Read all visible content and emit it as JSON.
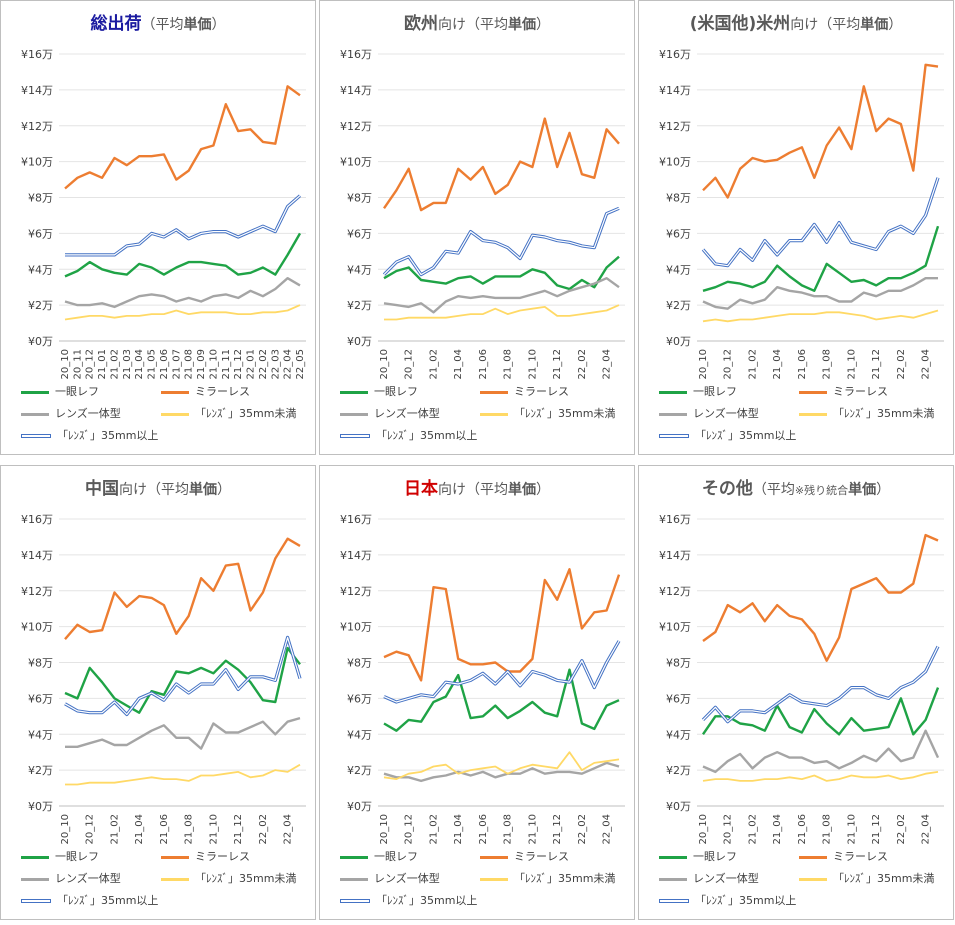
{
  "colors": {
    "slr": "#1fa346",
    "mirrorless": "#ed7d31",
    "fixed": "#a5a5a5",
    "lens_small": "#ffd966",
    "lens_large": "#4472c4",
    "grid": "#e4e4e4"
  },
  "y_ticks": [
    "¥0万",
    "¥2万",
    "¥4万",
    "¥6万",
    "¥8万",
    "¥10万",
    "¥12万",
    "¥14万",
    "¥16万"
  ],
  "legend": [
    "一眼レフ",
    "ミラーレス",
    "レンズ一体型",
    "「ﾚﾝｽﾞ」35mm未満",
    "「ﾚﾝｽﾞ」35mm以上"
  ],
  "panels": [
    {
      "title_main": "総出荷",
      "title_pre": "",
      "title_sub": "（平均",
      "title_bold": "単価",
      "title_end": "）",
      "main_color": "#1a1aa0",
      "chart_data": {
        "type": "line",
        "ylim": [
          0,
          16
        ],
        "y_unit": "万円",
        "x": [
          "20_10",
          "20_11",
          "20_12",
          "21_01",
          "21_02",
          "21_03",
          "21_04",
          "21_05",
          "21_06",
          "21_07",
          "21_08",
          "21_09",
          "21_10",
          "21_11",
          "21_12",
          "22_01",
          "22_02",
          "22_03",
          "22_04",
          "22_05"
        ],
        "series": [
          {
            "name": "一眼レフ",
            "values": [
              3.6,
              3.9,
              4.4,
              4.0,
              3.8,
              3.7,
              4.3,
              4.1,
              3.7,
              4.1,
              4.4,
              4.4,
              4.3,
              4.2,
              3.7,
              3.8,
              4.1,
              3.7,
              4.8,
              6.0
            ]
          },
          {
            "name": "ミラーレス",
            "values": [
              8.5,
              9.1,
              9.4,
              9.1,
              10.2,
              9.8,
              10.3,
              10.3,
              10.4,
              9.0,
              9.5,
              10.7,
              10.9,
              13.2,
              11.7,
              11.8,
              11.1,
              11.0,
              14.2,
              13.7
            ]
          },
          {
            "name": "レンズ一体型",
            "values": [
              2.2,
              2.0,
              2.0,
              2.1,
              1.9,
              2.2,
              2.5,
              2.6,
              2.5,
              2.2,
              2.4,
              2.2,
              2.5,
              2.6,
              2.4,
              2.8,
              2.5,
              2.9,
              3.5,
              3.1
            ]
          },
          {
            "name": "「ﾚﾝｽﾞ」35mm未満",
            "values": [
              1.2,
              1.3,
              1.4,
              1.4,
              1.3,
              1.4,
              1.4,
              1.5,
              1.5,
              1.7,
              1.5,
              1.6,
              1.6,
              1.6,
              1.5,
              1.5,
              1.6,
              1.6,
              1.7,
              2.0
            ]
          },
          {
            "name": "「ﾚﾝｽﾞ」35mm以上",
            "values": [
              4.8,
              4.8,
              4.8,
              4.8,
              4.8,
              5.3,
              5.4,
              6.0,
              5.8,
              6.2,
              5.7,
              6.0,
              6.1,
              6.1,
              5.8,
              6.1,
              6.4,
              6.1,
              7.5,
              8.1
            ]
          }
        ]
      }
    },
    {
      "title_main": "欧州",
      "title_pre": "",
      "title_sub": "向け（平均",
      "title_bold": "単価",
      "title_end": "）",
      "main_color": "#595959",
      "chart_data": {
        "type": "line",
        "ylim": [
          0,
          16
        ],
        "y_unit": "万円",
        "x": [
          "20_10",
          "20_11",
          "20_12",
          "21_01",
          "21_02",
          "21_03",
          "21_04",
          "21_05",
          "21_06",
          "21_07",
          "21_08",
          "21_09",
          "21_10",
          "21_11",
          "21_12",
          "22_01",
          "22_02",
          "22_03",
          "22_04",
          "22_05"
        ],
        "series": [
          {
            "name": "一眼レフ",
            "values": [
              3.5,
              3.9,
              4.1,
              3.4,
              3.3,
              3.2,
              3.5,
              3.6,
              3.2,
              3.6,
              3.6,
              3.6,
              4.0,
              3.8,
              3.1,
              2.9,
              3.4,
              3.0,
              4.1,
              4.7
            ]
          },
          {
            "name": "ミラーレス",
            "values": [
              7.4,
              8.4,
              9.6,
              7.3,
              7.7,
              7.7,
              9.6,
              9.0,
              9.7,
              8.2,
              8.7,
              10.0,
              9.7,
              12.4,
              9.7,
              11.6,
              9.3,
              9.1,
              11.8,
              11.0
            ]
          },
          {
            "name": "レンズ一体型",
            "values": [
              2.1,
              2.0,
              1.9,
              2.1,
              1.6,
              2.2,
              2.5,
              2.4,
              2.5,
              2.4,
              2.4,
              2.4,
              2.6,
              2.8,
              2.5,
              2.8,
              3.0,
              3.2,
              3.5,
              3.0
            ]
          },
          {
            "name": "「ﾚﾝｽﾞ」35mm未満",
            "values": [
              1.2,
              1.2,
              1.3,
              1.3,
              1.3,
              1.3,
              1.4,
              1.5,
              1.5,
              1.8,
              1.5,
              1.7,
              1.8,
              1.9,
              1.4,
              1.4,
              1.5,
              1.6,
              1.7,
              2.0
            ]
          },
          {
            "name": "「ﾚﾝｽﾞ」35mm以上",
            "values": [
              3.7,
              4.4,
              4.7,
              3.7,
              4.1,
              5.0,
              4.9,
              6.1,
              5.6,
              5.5,
              5.2,
              4.6,
              5.9,
              5.8,
              5.6,
              5.5,
              5.3,
              5.2,
              7.1,
              7.4
            ]
          }
        ]
      }
    },
    {
      "title_main": "米州",
      "title_pre": "(米国他)",
      "title_sub": "向け（平均",
      "title_bold": "単価",
      "title_end": "）",
      "main_color": "#595959",
      "chart_data": {
        "type": "line",
        "ylim": [
          0,
          16
        ],
        "y_unit": "万円",
        "x": [
          "20_10",
          "20_11",
          "20_12",
          "21_01",
          "21_02",
          "21_03",
          "21_04",
          "21_05",
          "21_06",
          "21_07",
          "21_08",
          "21_09",
          "21_10",
          "21_11",
          "21_12",
          "22_01",
          "22_02",
          "22_03",
          "22_04",
          "22_05"
        ],
        "series": [
          {
            "name": "一眼レフ",
            "values": [
              2.8,
              3.0,
              3.3,
              3.2,
              3.0,
              3.3,
              4.2,
              3.6,
              3.1,
              2.8,
              4.3,
              3.8,
              3.3,
              3.4,
              3.1,
              3.5,
              3.5,
              3.8,
              4.2,
              6.4
            ]
          },
          {
            "name": "ミラーレス",
            "values": [
              8.4,
              9.1,
              8.0,
              9.6,
              10.2,
              10.0,
              10.1,
              10.5,
              10.8,
              9.1,
              10.9,
              11.9,
              10.7,
              14.2,
              11.7,
              12.4,
              12.1,
              9.5,
              15.4,
              15.3
            ]
          },
          {
            "name": "レンズ一体型",
            "values": [
              2.2,
              1.9,
              1.8,
              2.3,
              2.1,
              2.3,
              3.0,
              2.8,
              2.7,
              2.5,
              2.5,
              2.2,
              2.2,
              2.7,
              2.5,
              2.8,
              2.8,
              3.1,
              3.5,
              3.5
            ]
          },
          {
            "name": "「ﾚﾝｽﾞ」35mm未満",
            "values": [
              1.1,
              1.2,
              1.1,
              1.2,
              1.2,
              1.3,
              1.4,
              1.5,
              1.5,
              1.5,
              1.6,
              1.6,
              1.5,
              1.4,
              1.2,
              1.3,
              1.4,
              1.3,
              1.5,
              1.7
            ]
          },
          {
            "name": "「ﾚﾝｽﾞ」35mm以上",
            "values": [
              5.1,
              4.3,
              4.2,
              5.1,
              4.5,
              5.6,
              4.8,
              5.6,
              5.6,
              6.5,
              5.5,
              6.6,
              5.5,
              5.3,
              5.1,
              6.1,
              6.4,
              6.0,
              7.0,
              9.1
            ]
          }
        ]
      }
    },
    {
      "title_main": "中国",
      "title_pre": "",
      "title_sub": "向け（平均",
      "title_bold": "単価",
      "title_end": "）",
      "main_color": "#595959",
      "chart_data": {
        "type": "line",
        "ylim": [
          0,
          16
        ],
        "y_unit": "万円",
        "x": [
          "20_10",
          "20_11",
          "20_12",
          "21_01",
          "21_02",
          "21_03",
          "21_04",
          "21_05",
          "21_06",
          "21_07",
          "21_08",
          "21_09",
          "21_10",
          "21_11",
          "21_12",
          "22_01",
          "22_02",
          "22_03",
          "22_04",
          "22_05"
        ],
        "series": [
          {
            "name": "一眼レフ",
            "values": [
              6.3,
              6.0,
              7.7,
              6.9,
              6.0,
              5.6,
              5.2,
              6.4,
              6.2,
              7.5,
              7.4,
              7.7,
              7.4,
              8.1,
              7.6,
              6.9,
              5.9,
              5.8,
              8.8,
              7.9
            ]
          },
          {
            "name": "ミラーレス",
            "values": [
              9.3,
              10.1,
              9.7,
              9.8,
              11.9,
              11.1,
              11.7,
              11.6,
              11.2,
              9.6,
              10.6,
              12.7,
              12.0,
              13.4,
              13.5,
              10.9,
              11.9,
              13.8,
              14.9,
              14.5
            ]
          },
          {
            "name": "レンズ一体型",
            "values": [
              3.3,
              3.3,
              3.5,
              3.7,
              3.4,
              3.4,
              3.8,
              4.2,
              4.5,
              3.8,
              3.8,
              3.2,
              4.6,
              4.1,
              4.1,
              4.4,
              4.7,
              4.0,
              4.7,
              4.9
            ]
          },
          {
            "name": "「ﾚﾝｽﾞ」35mm未満",
            "values": [
              1.2,
              1.2,
              1.3,
              1.3,
              1.3,
              1.4,
              1.5,
              1.6,
              1.5,
              1.5,
              1.4,
              1.7,
              1.7,
              1.8,
              1.9,
              1.6,
              1.7,
              2.0,
              1.9,
              2.3
            ]
          },
          {
            "name": "「ﾚﾝｽﾞ」35mm以上",
            "values": [
              5.7,
              5.3,
              5.2,
              5.2,
              5.8,
              5.1,
              6.0,
              6.3,
              5.9,
              6.8,
              6.3,
              6.8,
              6.8,
              7.6,
              6.5,
              7.2,
              7.2,
              7.0,
              9.4,
              7.1
            ]
          }
        ]
      }
    },
    {
      "title_main": "日本",
      "title_pre": "",
      "title_sub": "向け（平均",
      "title_bold": "単価",
      "title_end": "）",
      "main_color": "#d00000",
      "chart_data": {
        "type": "line",
        "ylim": [
          0,
          16
        ],
        "y_unit": "万円",
        "x": [
          "20_10",
          "20_11",
          "20_12",
          "21_01",
          "21_02",
          "21_03",
          "21_04",
          "21_05",
          "21_06",
          "21_07",
          "21_08",
          "21_09",
          "21_10",
          "21_11",
          "21_12",
          "22_01",
          "22_02",
          "22_03",
          "22_04",
          "22_05"
        ],
        "series": [
          {
            "name": "一眼レフ",
            "values": [
              4.6,
              4.2,
              4.8,
              4.7,
              5.8,
              6.1,
              7.3,
              4.9,
              5.0,
              5.6,
              4.9,
              5.3,
              5.8,
              5.2,
              5.0,
              7.6,
              4.6,
              4.3,
              5.6,
              5.9
            ]
          },
          {
            "name": "ミラーレス",
            "values": [
              8.3,
              8.6,
              8.4,
              7.0,
              12.2,
              12.1,
              8.2,
              7.9,
              7.9,
              8.0,
              7.5,
              7.5,
              8.2,
              12.6,
              11.5,
              13.2,
              9.9,
              10.8,
              10.9,
              12.9
            ]
          },
          {
            "name": "レンズ一体型",
            "values": [
              1.8,
              1.6,
              1.6,
              1.4,
              1.6,
              1.7,
              1.9,
              1.7,
              1.9,
              1.6,
              1.8,
              1.8,
              2.1,
              1.8,
              1.9,
              1.9,
              1.8,
              2.1,
              2.4,
              2.2
            ]
          },
          {
            "name": "「ﾚﾝｽﾞ」35mm未満",
            "values": [
              1.6,
              1.5,
              1.8,
              1.9,
              2.2,
              2.3,
              1.8,
              2.0,
              2.1,
              2.2,
              1.8,
              2.1,
              2.3,
              2.2,
              2.1,
              3.0,
              2.0,
              2.4,
              2.5,
              2.6
            ]
          },
          {
            "name": "「ﾚﾝｽﾞ」35mm以上",
            "values": [
              6.1,
              5.8,
              6.0,
              6.2,
              6.1,
              6.9,
              6.8,
              7.0,
              7.4,
              6.8,
              7.5,
              6.7,
              7.5,
              7.3,
              7.0,
              6.9,
              8.1,
              6.6,
              8.0,
              9.2
            ]
          }
        ]
      }
    },
    {
      "title_main": "その他",
      "title_pre": "",
      "title_sub": "（平均",
      "title_bold": "単価",
      "title_end": "）",
      "note": "※残り統合",
      "main_color": "#595959",
      "chart_data": {
        "type": "line",
        "ylim": [
          0,
          16
        ],
        "y_unit": "万円",
        "x": [
          "20_10",
          "20_11",
          "20_12",
          "21_01",
          "21_02",
          "21_03",
          "21_04",
          "21_05",
          "21_06",
          "21_07",
          "21_08",
          "21_09",
          "21_10",
          "21_11",
          "21_12",
          "22_01",
          "22_02",
          "22_03",
          "22_04",
          "22_05"
        ],
        "series": [
          {
            "name": "一眼レフ",
            "values": [
              4.0,
              5.0,
              5.0,
              4.6,
              4.5,
              4.2,
              5.6,
              4.4,
              4.1,
              5.4,
              4.6,
              4.0,
              4.9,
              4.2,
              4.3,
              4.4,
              6.0,
              4.0,
              4.8,
              6.6
            ]
          },
          {
            "name": "ミラーレス",
            "values": [
              9.2,
              9.7,
              11.2,
              10.8,
              11.3,
              10.3,
              11.2,
              10.6,
              10.4,
              9.6,
              8.1,
              9.4,
              12.1,
              12.4,
              12.7,
              11.9,
              11.9,
              12.4,
              15.1,
              14.8
            ]
          },
          {
            "name": "レンズ一体型",
            "values": [
              2.2,
              1.9,
              2.5,
              2.9,
              2.1,
              2.7,
              3.0,
              2.7,
              2.7,
              2.4,
              2.5,
              2.1,
              2.4,
              2.8,
              2.5,
              3.2,
              2.5,
              2.7,
              4.2,
              2.7
            ]
          },
          {
            "name": "「ﾚﾝｽﾞ」35mm未満",
            "values": [
              1.4,
              1.5,
              1.5,
              1.4,
              1.4,
              1.5,
              1.5,
              1.6,
              1.5,
              1.7,
              1.4,
              1.5,
              1.7,
              1.6,
              1.6,
              1.7,
              1.5,
              1.6,
              1.8,
              1.9
            ]
          },
          {
            "name": "「ﾚﾝｽﾞ」35mm以上",
            "values": [
              4.8,
              5.5,
              4.7,
              5.3,
              5.3,
              5.2,
              5.7,
              6.2,
              5.8,
              5.7,
              5.6,
              6.0,
              6.6,
              6.6,
              6.2,
              6.0,
              6.6,
              6.9,
              7.5,
              8.9
            ]
          }
        ]
      }
    }
  ]
}
